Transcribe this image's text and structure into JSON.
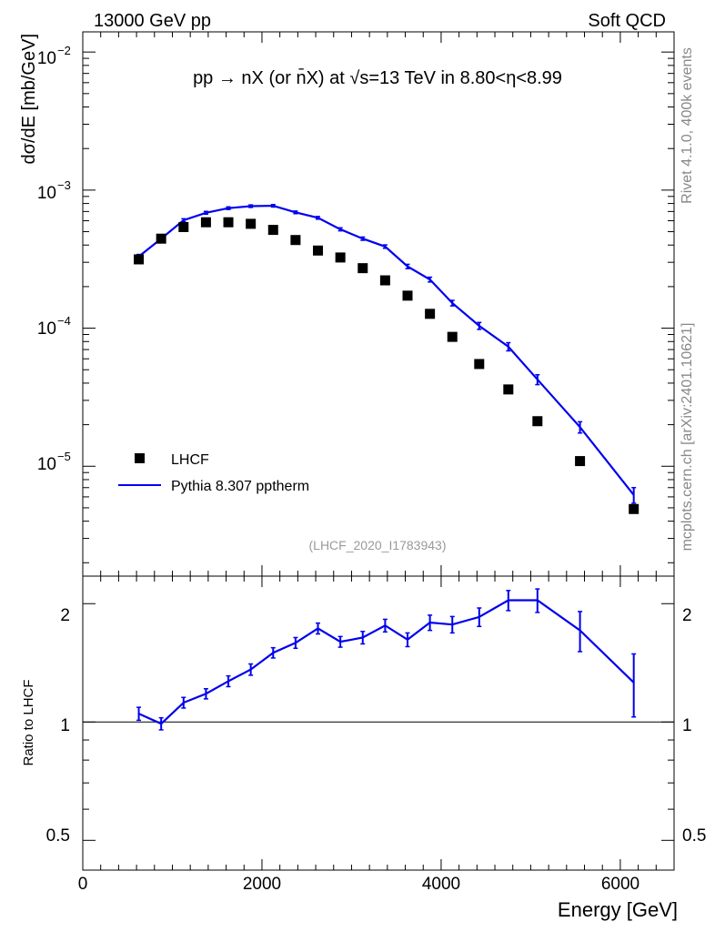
{
  "header": {
    "left": "13000 GeV pp",
    "right": "Soft QCD"
  },
  "side_labels": {
    "top": "Rivet 4.1.0,  400k events",
    "bottom": "mcplots.cern.ch [arXiv:2401.10621]"
  },
  "plot_title": "pp  →  nX (or n̄X) at √s=13 TeV in 8.80<η<8.99",
  "analysis_id": "(LHCF_2020_I1783943)",
  "legend": {
    "data_label": "LHCF",
    "mc_label": "Pythia 8.307 pptherm"
  },
  "colors": {
    "data": "#000000",
    "mc": "#0000ee",
    "analysis_id": "#999999",
    "side_labels": "#888888"
  },
  "chart_data": [
    {
      "type": "scatter",
      "panel": "main",
      "title": "pp → nX (or n̄X) at √s=13 TeV in 8.80<η<8.99",
      "xlabel": "Energy [GeV]",
      "ylabel": "dσ/dE [mb/GeV]",
      "yscale": "log",
      "xlim": [
        0,
        6600
      ],
      "ylim": [
        1.6e-06,
        0.014
      ],
      "x_ticks": [
        "0",
        "2000",
        "4000",
        "6000"
      ],
      "y_tick_labels": [
        {
          "mantissa": "10",
          "exp": "−2",
          "value": 0.01
        },
        {
          "mantissa": "10",
          "exp": "−3",
          "value": 0.001
        },
        {
          "mantissa": "10",
          "exp": "−4",
          "value": 0.0001
        },
        {
          "mantissa": "10",
          "exp": "−5",
          "value": 1e-05
        }
      ],
      "series": [
        {
          "name": "LHCF",
          "style": "markers",
          "x": [
            625,
            875,
            1125,
            1375,
            1625,
            1875,
            2125,
            2375,
            2625,
            2875,
            3125,
            3375,
            3625,
            3875,
            4125,
            4425,
            4750,
            5075,
            5550,
            6150
          ],
          "values": [
            0.000315,
            0.000445,
            0.00054,
            0.000585,
            0.000585,
            0.00057,
            0.000515,
            0.000435,
            0.000365,
            0.000325,
            0.000272,
            0.000222,
            0.000172,
            0.000127,
            8.65e-05,
            5.5e-05,
            3.6e-05,
            2.12e-05,
            1.09e-05,
            4.9e-06
          ]
        },
        {
          "name": "Pythia 8.307 pptherm",
          "style": "line",
          "x": [
            625,
            875,
            1125,
            1375,
            1625,
            1875,
            2125,
            2375,
            2625,
            2875,
            3125,
            3375,
            3625,
            3875,
            4125,
            4425,
            4750,
            5075,
            5550,
            6150
          ],
          "values": [
            0.00033,
            0.000445,
            0.000605,
            0.000685,
            0.00074,
            0.000765,
            0.00077,
            0.00069,
            0.00063,
            0.00052,
            0.000445,
            0.00039,
            0.00028,
            0.000225,
            0.000152,
            0.000104,
            7.35e-05,
            4.25e-05,
            1.92e-05,
            6.2e-06
          ],
          "errors": [
            1.2e-05,
            1.4e-05,
            1.5e-05,
            1.6e-05,
            1.6e-05,
            1.6e-05,
            1.6e-05,
            1.5e-05,
            1.4e-05,
            1.3e-05,
            1.2e-05,
            1.1e-05,
            1e-05,
            9e-06,
            7e-06,
            6e-06,
            5e-06,
            3.5e-06,
            1.8e-06,
            8e-07
          ]
        }
      ]
    },
    {
      "type": "line",
      "panel": "ratio",
      "xlabel": "Energy [GeV]",
      "ylabel": "Ratio to LHCF",
      "yscale": "log",
      "xlim": [
        0,
        6600
      ],
      "ylim": [
        0.42,
        2.35
      ],
      "x_ticks": [
        "0",
        "2000",
        "4000",
        "6000"
      ],
      "y_ticks": [
        "0.5",
        "1",
        "2"
      ],
      "reference_line": 1,
      "series": [
        {
          "name": "Pythia 8.307 pptherm / LHCF",
          "x": [
            625,
            875,
            1125,
            1375,
            1625,
            1875,
            2125,
            2375,
            2625,
            2875,
            3125,
            3375,
            3625,
            3875,
            4125,
            4425,
            4750,
            5075,
            5550,
            6150
          ],
          "values": [
            1.05,
            0.99,
            1.12,
            1.18,
            1.27,
            1.36,
            1.5,
            1.59,
            1.73,
            1.6,
            1.64,
            1.76,
            1.62,
            1.79,
            1.77,
            1.85,
            2.04,
            2.04,
            1.71,
            1.26
          ],
          "errors": [
            0.04,
            0.035,
            0.035,
            0.035,
            0.04,
            0.045,
            0.045,
            0.05,
            0.055,
            0.05,
            0.06,
            0.065,
            0.065,
            0.08,
            0.085,
            0.1,
            0.12,
            0.14,
            0.2,
            0.23
          ]
        }
      ]
    }
  ]
}
